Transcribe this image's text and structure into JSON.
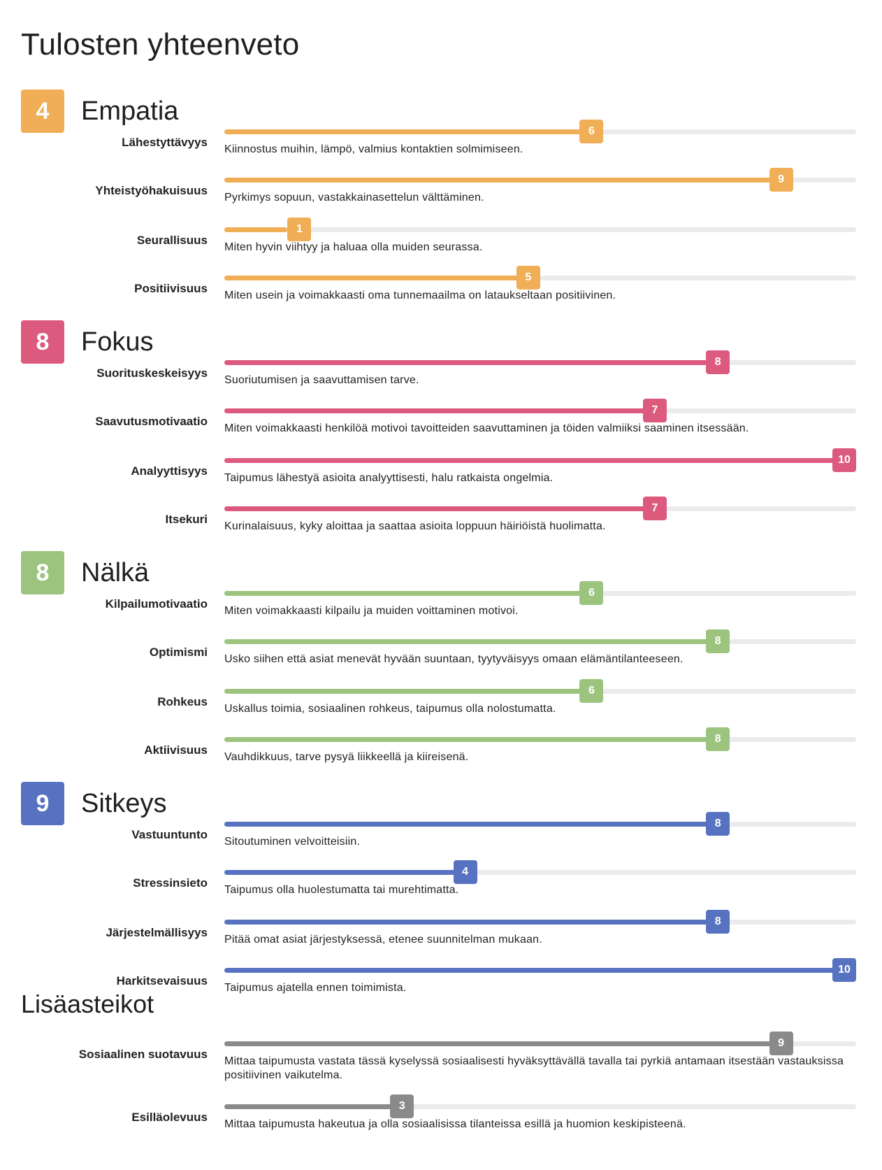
{
  "title": "Tulosten yhteenveto",
  "max_score": 10,
  "sections": [
    {
      "name": "Empatia",
      "score": "4",
      "color": "#f0ae56",
      "items": [
        {
          "label": "Lähestyttävyys",
          "value": 6,
          "desc": "Kiinnostus muihin, lämpö, valmius kontaktien solmimiseen."
        },
        {
          "label": "Yhteistyöhakuisuus",
          "value": 9,
          "desc": "Pyrkimys sopuun, vastakkainasettelun välttäminen."
        },
        {
          "label": "Seurallisuus",
          "value": 1,
          "desc": "Miten hyvin viihtyy ja haluaa olla muiden seurassa."
        },
        {
          "label": "Positiivisuus",
          "value": 5,
          "desc": "Miten usein ja voimakkaasti oma tunnemaailma on lataukseltaan positiivinen."
        }
      ]
    },
    {
      "name": "Fokus",
      "score": "8",
      "color": "#dd5a7f",
      "items": [
        {
          "label": "Suorituskeskeisyys",
          "value": 8,
          "desc": "Suoriutumisen ja saavuttamisen tarve."
        },
        {
          "label": "Saavutusmotivaatio",
          "value": 7,
          "desc": "Miten voimakkaasti henkilöä motivoi tavoitteiden saavuttaminen ja töiden valmiiksi saaminen itsessään."
        },
        {
          "label": "Analyyttisyys",
          "value": 10,
          "desc": "Taipumus lähestyä asioita analyyttisesti, halu ratkaista ongelmia."
        },
        {
          "label": "Itsekuri",
          "value": 7,
          "desc": "Kurinalaisuus, kyky aloittaa ja saattaa asioita loppuun häiriöistä huolimatta."
        }
      ]
    },
    {
      "name": "Nälkä",
      "score": "8",
      "color": "#9cc47e",
      "items": [
        {
          "label": "Kilpailumotivaatio",
          "value": 6,
          "desc": "Miten voimakkaasti kilpailu ja muiden voittaminen motivoi."
        },
        {
          "label": "Optimismi",
          "value": 8,
          "desc": "Usko siihen että asiat menevät hyvään suuntaan, tyytyväisyys omaan elämäntilanteeseen."
        },
        {
          "label": "Rohkeus",
          "value": 6,
          "desc": "Uskallus toimia, sosiaalinen rohkeus, taipumus olla nolostumatta."
        },
        {
          "label": "Aktiivisuus",
          "value": 8,
          "desc": "Vauhdikkuus, tarve pysyä liikkeellä ja kiireisenä."
        }
      ]
    },
    {
      "name": "Sitkeys",
      "score": "9",
      "color": "#5872c2",
      "items": [
        {
          "label": "Vastuuntunto",
          "value": 8,
          "desc": "Sitoutuminen velvoitteisiin."
        },
        {
          "label": "Stressinsieto",
          "value": 4,
          "desc": "Taipumus olla huolestumatta tai murehtimatta."
        },
        {
          "label": "Järjestelmällisyys",
          "value": 8,
          "desc": "Pitää omat asiat järjestyksessä, etenee suunnitelman mukaan."
        },
        {
          "label": "Harkitsevaisuus",
          "value": 10,
          "desc": "Taipumus ajatella ennen toimimista."
        }
      ]
    }
  ],
  "extra": {
    "title": "Lisäasteikot",
    "color": "#8a8a8a",
    "items": [
      {
        "label": "Sosiaalinen suotavuus",
        "value": 9,
        "desc": "Mittaa taipumusta vastata tässä kyselyssä sosiaalisesti hyväksyttävällä tavalla tai pyrkiä antamaan itsestään vastauksissa positiivinen vaikutelma."
      },
      {
        "label": "Esilläolevuus",
        "value": 3,
        "desc": "Mittaa taipumusta hakeutua ja olla sosiaalisissa tilanteissa esillä ja huomion keskipisteenä."
      }
    ]
  }
}
